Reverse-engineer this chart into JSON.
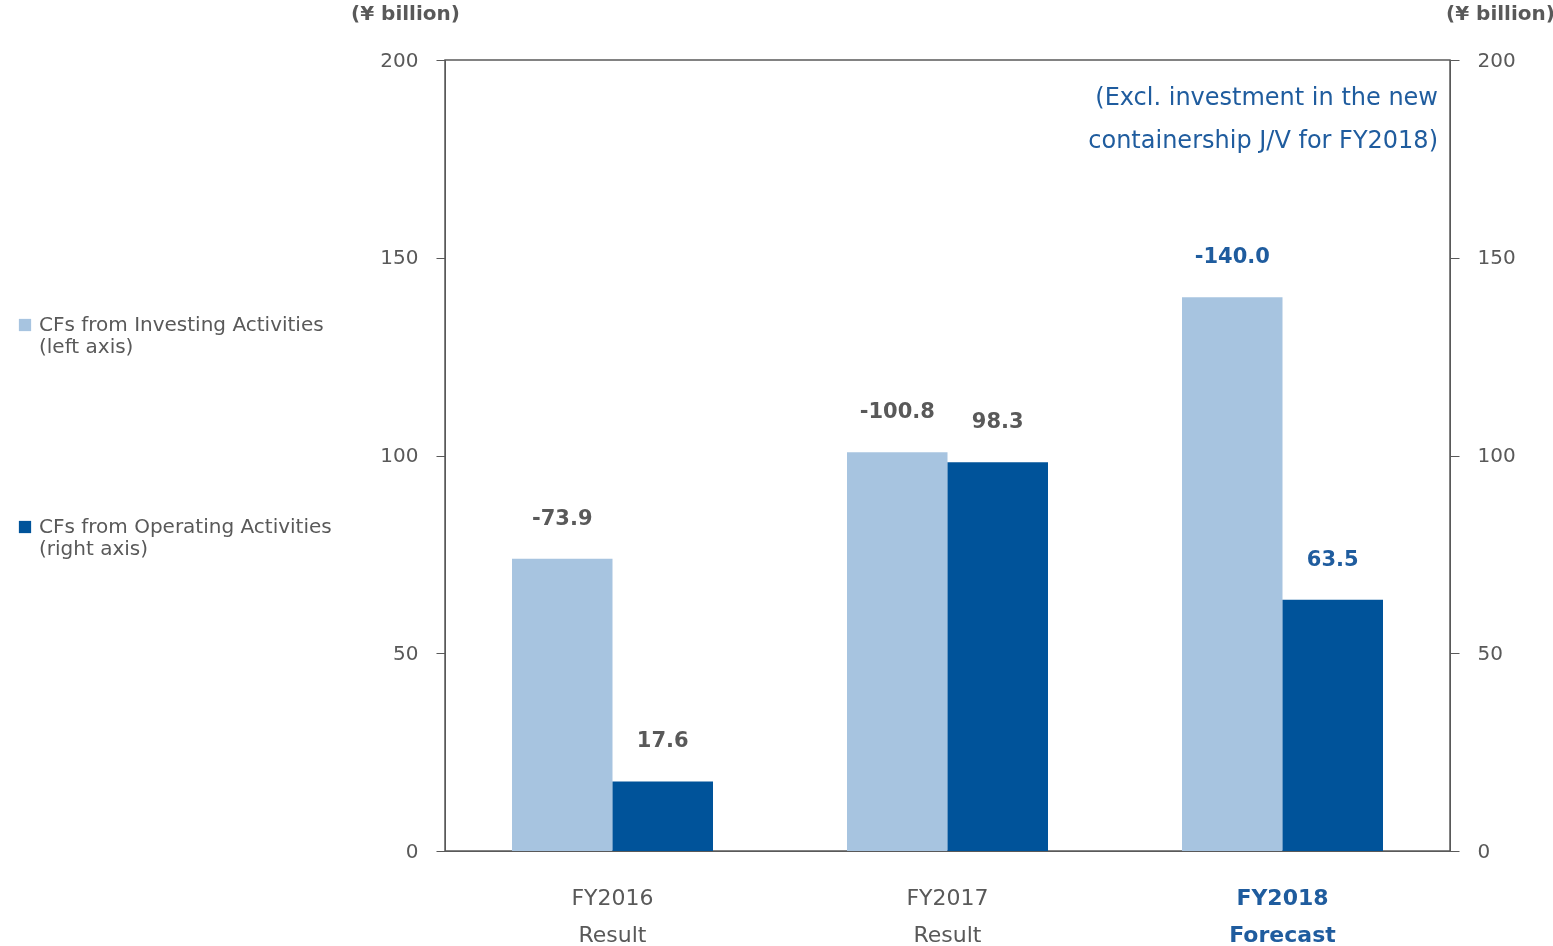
{
  "chart_data": {
    "type": "bar",
    "categories": [
      "FY2016\nResult",
      "FY2017\nResult",
      "FY2018\nForecast"
    ],
    "series": [
      {
        "name": "CFs from Investing Activities\n(left axis)",
        "color": "#a7c4e0",
        "values": [
          -73.9,
          -100.8,
          -140.0
        ],
        "value_labels": [
          "-73.9",
          "-100.8",
          "-140.0"
        ]
      },
      {
        "name": "CFs from Operating Activities\n(right axis)",
        "color": "#00539a",
        "axis": "y2",
        "values": [
          17.6,
          98.3,
          63.5
        ]
      }
    ],
    "ylabel": "(¥ billion)",
    "y2label": "(¥ billion)",
    "ylim": [
      0,
      -200
    ],
    "yticks": [
      0,
      {
        "value": -50,
        "label": "50"
      },
      {
        "value": -100,
        "label": "100"
      },
      {
        "value": -150,
        "label": "150"
      },
      {
        "value": -200,
        "label": "200"
      }
    ],
    "data_labels": true,
    "y2lim": [
      0,
      200
    ],
    "y2ticks": [
      0,
      50,
      100,
      150,
      200
    ],
    "annotations": [
      "(Excl. investment in the new\ncontainership  J/V  for FY2018)"
    ],
    "legend": "left",
    "grid": false
  }
}
